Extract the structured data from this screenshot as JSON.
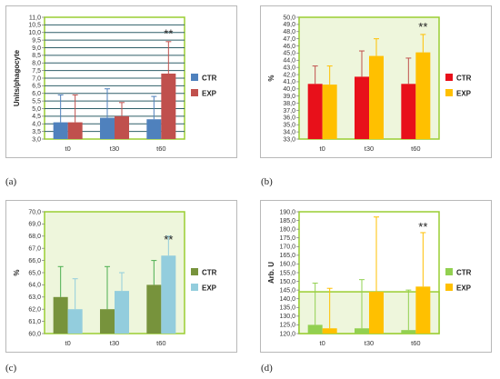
{
  "panel_labels": [
    "(a)",
    "(b)",
    "(c)",
    "(d)"
  ],
  "chart_data": [
    {
      "type": "bar",
      "categories": [
        "t0",
        "t30",
        "t60"
      ],
      "ylabel": "Units/phagocyte",
      "ylim": [
        3.0,
        11.0
      ],
      "ystep": 0.5,
      "grid": true,
      "legend": "right",
      "plot_bg": "#ffffff",
      "frame_color": "#9acd32",
      "grid_color": "#2f5f68",
      "series": [
        {
          "name": "CTR",
          "color": "#4f81bd",
          "values": [
            4.1,
            4.4,
            4.3
          ],
          "err_up": [
            5.9,
            6.3,
            5.8
          ],
          "err_color": "#4f81bd"
        },
        {
          "name": "EXP",
          "color": "#c0504d",
          "values": [
            4.1,
            4.5,
            7.3
          ],
          "err_up": [
            5.9,
            5.4,
            9.4
          ],
          "err_color": "#c0504d"
        }
      ],
      "annotations": [
        {
          "text": "**",
          "category": "t60",
          "value": 9.9
        }
      ]
    },
    {
      "type": "bar",
      "categories": [
        "t0",
        "t30",
        "t60"
      ],
      "ylabel": "%",
      "ylim": [
        33.0,
        50.0
      ],
      "ystep": 1.0,
      "grid": false,
      "legend": "right",
      "plot_bg": "#eef6dc",
      "frame_color": "#9acd32",
      "grid_color": "#9acd32",
      "series": [
        {
          "name": "CTR",
          "color": "#e8101a",
          "values": [
            40.7,
            41.7,
            40.7
          ],
          "err_up": [
            43.2,
            45.3,
            44.3
          ],
          "err_color": "#c0504d"
        },
        {
          "name": "EXP",
          "color": "#ffc000",
          "values": [
            40.6,
            44.6,
            45.1
          ],
          "err_up": [
            43.2,
            47.0,
            47.6
          ],
          "err_color": "#ffc000"
        }
      ],
      "annotations": [
        {
          "text": "**",
          "category": "t60",
          "value": 48.6
        }
      ]
    },
    {
      "type": "bar",
      "categories": [
        "t0",
        "t30",
        "t60"
      ],
      "ylabel": "%",
      "ylim": [
        60.0,
        70.0
      ],
      "ystep": 1.0,
      "grid": false,
      "legend": "right",
      "plot_bg": "#eef6dc",
      "frame_color": "#9acd32",
      "grid_color": "#9acd32",
      "series": [
        {
          "name": "CTR",
          "color": "#77933c",
          "values": [
            63.0,
            62.0,
            64.0
          ],
          "err_up": [
            65.5,
            65.5,
            66.0
          ],
          "err_color": "#4caf50"
        },
        {
          "name": "EXP",
          "color": "#93cddd",
          "values": [
            62.0,
            63.5,
            66.4
          ],
          "err_up": [
            64.5,
            65.0,
            68.0
          ],
          "err_color": "#93cddd"
        }
      ],
      "annotations": [
        {
          "text": "**",
          "category": "t60",
          "value": 67.7
        }
      ]
    },
    {
      "type": "bar",
      "categories": [
        "t0",
        "t30",
        "t60"
      ],
      "ylabel": "Arb. U",
      "ylim": [
        120.0,
        190.0
      ],
      "ystep": 5.0,
      "grid": false,
      "legend": "right",
      "plot_bg": "#ffffff",
      "frame_color": "#9acd32",
      "grid_color": "#9acd32",
      "inner_band_top": 144.0,
      "series": [
        {
          "name": "CTR",
          "color": "#92d050",
          "values": [
            125.0,
            123.0,
            122.0
          ],
          "err_up": [
            149.0,
            151.0,
            145.0
          ],
          "err_color": "#92d050"
        },
        {
          "name": "EXP",
          "color": "#ffc000",
          "values": [
            123.0,
            144.0,
            147.0
          ],
          "err_up": [
            146.0,
            187.0,
            178.0
          ],
          "err_color": "#ffc000"
        }
      ],
      "annotations": [
        {
          "text": "**",
          "category": "t60",
          "value": 181.0
        }
      ]
    }
  ]
}
